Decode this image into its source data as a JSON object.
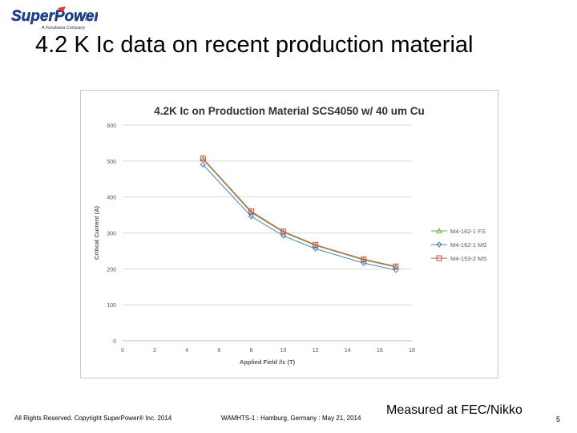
{
  "logo": {
    "brand": "SuperPower",
    "suffix": "Inc.",
    "tagline": "A Furukawa Company"
  },
  "slide": {
    "title": "4.2 K Ic data on recent production material",
    "measured_note": "Measured at FEC/Nikko",
    "footer_copyright": "All Rights Reserved. Copyright SuperPower® Inc. 2014",
    "footer_event": "WAMHTS-1 : Hamburg, Germany : May 21, 2014",
    "page_number": "5"
  },
  "colors": {
    "grid": "#d9d9d9",
    "axis_text": "#595959",
    "series_fs": "#70ad47",
    "series_ms": "#4f81bd",
    "series_153": "#c0504d"
  },
  "chart_data": {
    "type": "line",
    "title": "4.2K Ic on Production Material SCS4050 w/ 40 um Cu",
    "xlabel": "Applied Field //c (T)",
    "ylabel": "Critical Current (A)",
    "xlim": [
      0,
      18
    ],
    "ylim": [
      0,
      600
    ],
    "xticks": [
      0,
      2,
      4,
      6,
      8,
      10,
      12,
      14,
      16,
      18
    ],
    "yticks": [
      0,
      100,
      200,
      300,
      400,
      500,
      600
    ],
    "grid": "horizontal",
    "legend": "right",
    "series": [
      {
        "name": "M4-162-1 FS",
        "marker": "triangle",
        "color": "#70ad47",
        "x": [
          5,
          8,
          10,
          12,
          15,
          17
        ],
        "y": [
          505,
          357,
          302,
          265,
          225,
          205
        ]
      },
      {
        "name": "M4-162-1 MS",
        "marker": "diamond",
        "color": "#4f81bd",
        "x": [
          5,
          8,
          10,
          12,
          15,
          17
        ],
        "y": [
          490,
          346,
          292,
          256,
          216,
          197
        ]
      },
      {
        "name": "M4-153-2 MS",
        "marker": "square",
        "color": "#c0504d",
        "x": [
          5,
          8,
          10,
          12,
          15,
          17
        ],
        "y": [
          507,
          360,
          304,
          267,
          227,
          207
        ]
      }
    ]
  }
}
